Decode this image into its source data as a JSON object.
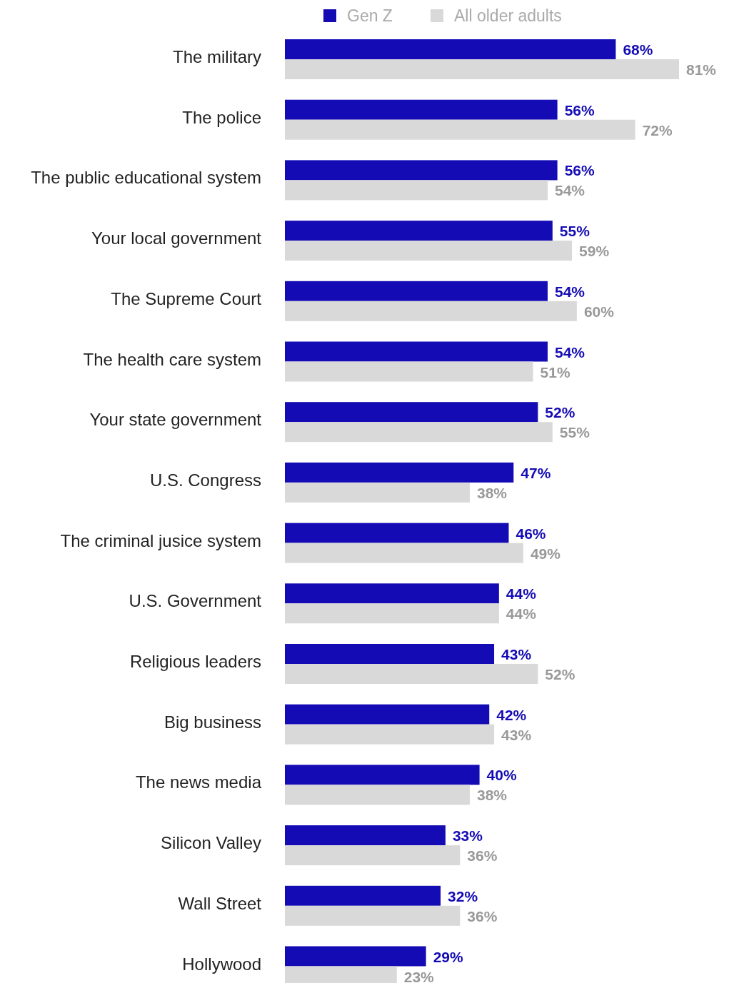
{
  "chart_data": {
    "type": "bar",
    "orientation": "horizontal",
    "legend": "top",
    "categories": [
      "The military",
      "The police",
      "The public educational system",
      "Your local government",
      "The Supreme Court",
      "The health care system",
      "Your state government",
      "U.S. Congress",
      "The criminal jusice system",
      "U.S. Government",
      "Religious leaders",
      "Big business",
      "The news media",
      "Silicon Valley",
      "Wall Street",
      "Hollywood"
    ],
    "series": [
      {
        "name": "Gen Z",
        "color": "#140bb4",
        "values": [
          68,
          56,
          56,
          55,
          54,
          54,
          52,
          47,
          46,
          44,
          43,
          42,
          40,
          33,
          32,
          29
        ],
        "value_labels": [
          "68%",
          "56%",
          "56%",
          "55%",
          "54%",
          "54%",
          "52%",
          "47%",
          "46%",
          "44%",
          "43%",
          "42%",
          "40%",
          "33%",
          "32%",
          "29%"
        ]
      },
      {
        "name": "All older adults",
        "color": "#d9d9d9",
        "values": [
          81,
          72,
          54,
          59,
          60,
          51,
          55,
          38,
          49,
          44,
          52,
          43,
          38,
          36,
          36,
          23
        ],
        "value_labels": [
          "81%",
          "72%",
          "54%",
          "59%",
          "60%",
          "51%",
          "55%",
          "38%",
          "49%",
          "44%",
          "52%",
          "43%",
          "38%",
          "36%",
          "36%",
          "23%"
        ]
      }
    ]
  }
}
